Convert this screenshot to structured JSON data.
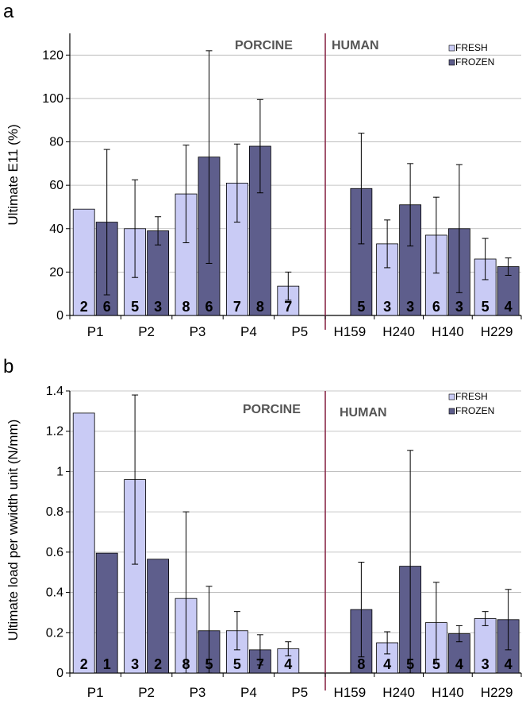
{
  "colors": {
    "fresh": "#c9cbf5",
    "frozen": "#5e5e8c",
    "divider": "#8a2a4a",
    "grid": "#b4b4b4"
  },
  "chart_data": [
    {
      "type": "bar",
      "panel_letter": "a",
      "ylabel": "Ultimate E11 (%)",
      "ylim": [
        0,
        130
      ],
      "yticks": [
        "0",
        "20",
        "40",
        "60",
        "80",
        "100",
        "120"
      ],
      "ytick_values": [
        0,
        20,
        40,
        60,
        80,
        100,
        120
      ],
      "categories": [
        "P1",
        "P2",
        "P3",
        "P4",
        "P5",
        "H159",
        "H240",
        "H140",
        "H229"
      ],
      "group_labels": [
        "PORCINE",
        "HUMAN"
      ],
      "legend": [
        "FRESH",
        "FROZEN"
      ],
      "legend_position": "top-right",
      "grid": true,
      "series": [
        {
          "name": "FRESH",
          "values": [
            49,
            40,
            56,
            61,
            13.5,
            null,
            33,
            37,
            26
          ],
          "errors": [
            null,
            22.5,
            22.5,
            18,
            6.5,
            null,
            11,
            17.5,
            9.5
          ],
          "n": [
            "2",
            "5",
            "8",
            "7",
            "7",
            "",
            "3",
            "6",
            "5"
          ]
        },
        {
          "name": "FROZEN",
          "values": [
            43,
            39,
            73,
            78,
            null,
            58.5,
            51,
            40,
            22.5
          ],
          "errors": [
            33.5,
            6.5,
            49,
            21.5,
            null,
            25.5,
            19,
            29.5,
            4
          ],
          "n": [
            "6",
            "3",
            "6",
            "8",
            "",
            "5",
            "3",
            "3",
            "4"
          ]
        }
      ]
    },
    {
      "type": "bar",
      "panel_letter": "b",
      "ylabel": "Ultimate load per wwidth unit (N/mm)",
      "ylim": [
        0,
        1.4
      ],
      "yticks": [
        "0",
        "0.2",
        "0.4",
        "0.6",
        "0.8",
        "1",
        "1.2",
        "1.4"
      ],
      "ytick_values": [
        0,
        0.2,
        0.4,
        0.6,
        0.8,
        1.0,
        1.2,
        1.4
      ],
      "categories": [
        "P1",
        "P2",
        "P3",
        "P4",
        "P5",
        "H159",
        "H240",
        "H140",
        "H229"
      ],
      "group_labels": [
        "PORCINE",
        "HUMAN"
      ],
      "legend": [
        "FRESH",
        "FROZEN"
      ],
      "legend_position": "top-right",
      "grid": true,
      "series": [
        {
          "name": "FRESH",
          "values": [
            1.29,
            0.96,
            0.37,
            0.21,
            0.12,
            null,
            0.15,
            0.25,
            0.27
          ],
          "errors": [
            null,
            0.42,
            0.43,
            0.095,
            0.035,
            null,
            0.055,
            0.2,
            0.035
          ],
          "n": [
            "2",
            "3",
            "8",
            "5",
            "4",
            "",
            "4",
            "5",
            "3"
          ]
        },
        {
          "name": "FROZEN",
          "values": [
            0.595,
            0.565,
            0.21,
            0.115,
            null,
            0.315,
            0.53,
            0.195,
            0.265
          ],
          "errors": [
            null,
            null,
            0.22,
            0.075,
            null,
            0.235,
            0.575,
            0.04,
            0.15
          ],
          "n": [
            "1",
            "2",
            "5",
            "7",
            "",
            "8",
            "5",
            "4",
            "4"
          ]
        }
      ]
    }
  ]
}
